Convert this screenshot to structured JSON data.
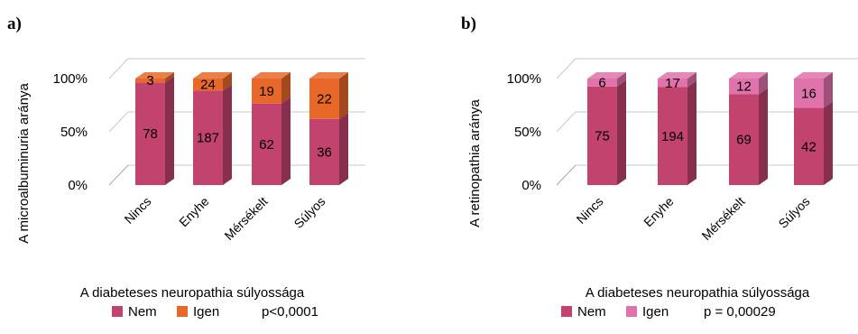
{
  "chart_data": [
    {
      "panel": "a)",
      "type": "bar",
      "stacked": "percent",
      "three_d": true,
      "categories": [
        "Nincs",
        "Enyhe",
        "Mérsékelt",
        "Súlyos"
      ],
      "series": [
        {
          "name": "Nem",
          "values": [
            78,
            187,
            62,
            36
          ],
          "color": "#c3436f"
        },
        {
          "name": "Igen",
          "values": [
            3,
            24,
            19,
            22
          ],
          "color": "#e8682a"
        }
      ],
      "xlabel": "A diabeteses neuropathia súlyossága",
      "ylabel": "A microalbuminuria aránya",
      "yticks": [
        "0%",
        "50%",
        "100%"
      ],
      "ylim": [
        0,
        100
      ],
      "grid": true,
      "legend": "bottom",
      "note": "p<0,0001"
    },
    {
      "panel": "b)",
      "type": "bar",
      "stacked": "percent",
      "three_d": true,
      "categories": [
        "Nincs",
        "Enyhe",
        "Mérsékelt",
        "Súlyos"
      ],
      "series": [
        {
          "name": "Nem",
          "values": [
            75,
            194,
            69,
            42
          ],
          "color": "#c3436f"
        },
        {
          "name": "Igen",
          "values": [
            6,
            17,
            12,
            16
          ],
          "color": "#e073ac"
        }
      ],
      "xlabel": "A diabeteses neuropathia súlyossága",
      "ylabel": "A retinopathia aránya",
      "yticks": [
        "0%",
        "50%",
        "100%"
      ],
      "ylim": [
        0,
        100
      ],
      "grid": true,
      "legend": "bottom",
      "note": "p = 0,00029"
    }
  ]
}
